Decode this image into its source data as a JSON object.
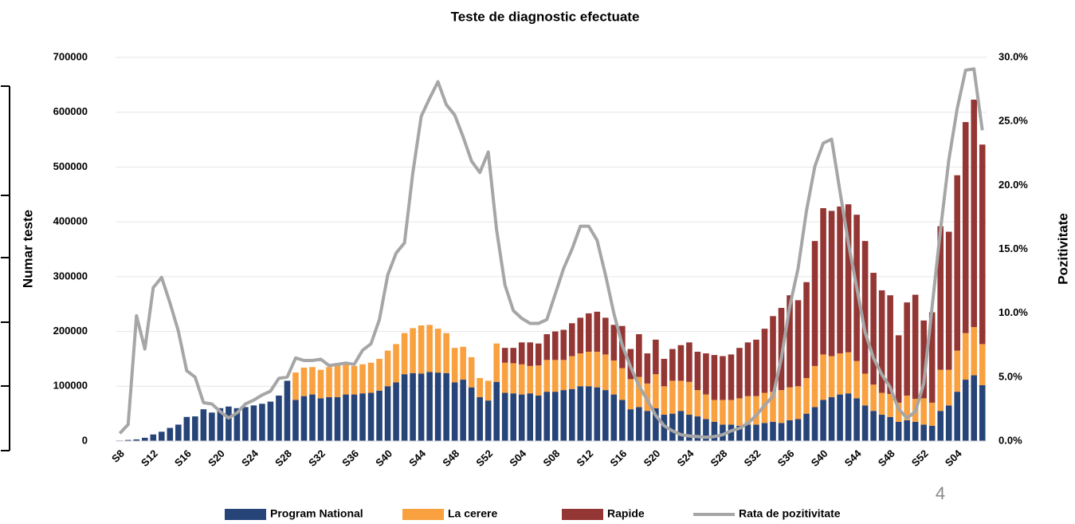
{
  "chart_data": {
    "type": "bar",
    "title": "Teste de diagnostic efectuate",
    "y_label": "Numar teste",
    "y2_label": "Pozitivitate",
    "annotation": "4",
    "stacked": true,
    "legend": "bottom",
    "categories": [
      "S8",
      null,
      null,
      null,
      "S12",
      null,
      null,
      null,
      "S16",
      null,
      null,
      null,
      "S20",
      null,
      null,
      null,
      "S24",
      null,
      null,
      null,
      "S28",
      null,
      null,
      null,
      "S32",
      null,
      null,
      null,
      "S36",
      null,
      null,
      null,
      "S40",
      null,
      null,
      null,
      "S44",
      null,
      null,
      null,
      "S48",
      null,
      null,
      null,
      "S52",
      null,
      null,
      null,
      "S04",
      null,
      null,
      null,
      "S08",
      null,
      null,
      null,
      "S12",
      null,
      null,
      null,
      "S16",
      null,
      null,
      null,
      "S20",
      null,
      null,
      null,
      "S24",
      null,
      null,
      null,
      "S28",
      null,
      null,
      null,
      "S32",
      null,
      null,
      null,
      "S36",
      null,
      null,
      null,
      "S40",
      null,
      null,
      null,
      "S44",
      null,
      null,
      null,
      "S48",
      null,
      null,
      null,
      "S52",
      null,
      null,
      null,
      "S04",
      null,
      null,
      null
    ],
    "series": [
      {
        "name": "Program National",
        "color": "#264478",
        "type": "bar",
        "values": [
          1000,
          2000,
          3000,
          6000,
          12000,
          17000,
          24000,
          30000,
          44000,
          45000,
          58000,
          52000,
          60000,
          63000,
          60000,
          62000,
          65000,
          68000,
          72000,
          83000,
          110000,
          75000,
          82000,
          85000,
          78000,
          80000,
          80000,
          85000,
          85000,
          87000,
          88000,
          92000,
          100000,
          107000,
          122000,
          124000,
          123000,
          126000,
          125000,
          124000,
          107000,
          112000,
          98000,
          80000,
          74000,
          108000,
          88000,
          87000,
          85000,
          87000,
          83000,
          90000,
          90000,
          93000,
          95000,
          100000,
          100000,
          98000,
          93000,
          85000,
          75000,
          58000,
          62000,
          55000,
          60000,
          48000,
          50000,
          55000,
          48000,
          45000,
          40000,
          35000,
          30000,
          30000,
          28000,
          30000,
          30000,
          33000,
          35000,
          33000,
          38000,
          40000,
          50000,
          62000,
          75000,
          80000,
          85000,
          87000,
          78000,
          65000,
          55000,
          48000,
          44000,
          35000,
          38000,
          35000,
          30000,
          28000,
          55000,
          65000,
          90000,
          112000,
          120000,
          102000
        ]
      },
      {
        "name": "La cerere",
        "color": "#f9a03f",
        "type": "bar",
        "values": [
          0,
          0,
          0,
          0,
          0,
          0,
          0,
          0,
          0,
          0,
          0,
          0,
          0,
          0,
          0,
          0,
          0,
          0,
          0,
          0,
          0,
          50000,
          52000,
          50000,
          52000,
          55000,
          62000,
          55000,
          52000,
          53000,
          55000,
          58000,
          65000,
          70000,
          75000,
          82000,
          88000,
          86000,
          80000,
          73000,
          63000,
          60000,
          55000,
          35000,
          36000,
          70000,
          55000,
          55000,
          55000,
          50000,
          55000,
          58000,
          58000,
          55000,
          60000,
          60000,
          63000,
          65000,
          65000,
          62000,
          58000,
          55000,
          55000,
          50000,
          62000,
          52000,
          60000,
          55000,
          60000,
          48000,
          45000,
          40000,
          45000,
          45000,
          50000,
          52000,
          52000,
          55000,
          55000,
          60000,
          60000,
          60000,
          65000,
          75000,
          83000,
          75000,
          75000,
          75000,
          68000,
          58000,
          48000,
          40000,
          42000,
          35000,
          45000,
          42000,
          48000,
          42000,
          75000,
          65000,
          75000,
          85000,
          88000,
          75000
        ]
      },
      {
        "name": "Rapide",
        "color": "#943634",
        "type": "bar",
        "values": [
          0,
          0,
          0,
          0,
          0,
          0,
          0,
          0,
          0,
          0,
          0,
          0,
          0,
          0,
          0,
          0,
          0,
          0,
          0,
          0,
          0,
          0,
          0,
          0,
          0,
          0,
          0,
          0,
          0,
          0,
          0,
          0,
          0,
          0,
          0,
          0,
          0,
          0,
          0,
          0,
          0,
          0,
          0,
          0,
          0,
          0,
          27000,
          28000,
          40000,
          43000,
          40000,
          47000,
          52000,
          55000,
          60000,
          65000,
          70000,
          73000,
          67000,
          65000,
          77000,
          55000,
          78000,
          55000,
          63000,
          50000,
          58000,
          65000,
          72000,
          70000,
          75000,
          82000,
          80000,
          83000,
          92000,
          98000,
          103000,
          117000,
          138000,
          150000,
          168000,
          157000,
          175000,
          228000,
          267000,
          265000,
          268000,
          270000,
          267000,
          242000,
          204000,
          187000,
          180000,
          123000,
          170000,
          190000,
          142000,
          165000,
          262000,
          252000,
          320000,
          385000,
          415000,
          364000
        ]
      },
      {
        "name": "Rata de pozitivitate",
        "color": "#a6a6a6",
        "type": "line",
        "axis": "y2",
        "values": [
          0.6,
          1.3,
          9.8,
          7.2,
          12.0,
          12.8,
          10.8,
          8.6,
          5.5,
          5.0,
          3.0,
          2.9,
          2.3,
          1.8,
          2.2,
          2.9,
          3.2,
          3.6,
          3.9,
          4.9,
          5.0,
          6.5,
          6.3,
          6.3,
          6.4,
          5.9,
          6.0,
          6.1,
          6.0,
          7.1,
          7.6,
          9.5,
          13.0,
          14.7,
          15.5,
          21.0,
          25.4,
          26.8,
          28.1,
          26.3,
          25.5,
          23.8,
          21.9,
          21.0,
          22.6,
          16.5,
          12.2,
          10.2,
          9.6,
          9.2,
          9.2,
          9.5,
          11.5,
          13.5,
          15.0,
          16.8,
          16.8,
          15.7,
          13.0,
          10.0,
          7.5,
          5.8,
          4.3,
          3.2,
          2.0,
          1.2,
          0.8,
          0.5,
          0.4,
          0.35,
          0.3,
          0.35,
          0.5,
          0.8,
          1.0,
          1.4,
          2.0,
          2.8,
          3.5,
          6.5,
          10.5,
          13.5,
          18.0,
          21.5,
          23.3,
          23.6,
          19.5,
          15.5,
          12.0,
          8.5,
          6.5,
          5.2,
          4.2,
          2.5,
          1.8,
          2.3,
          4.5,
          10.5,
          16.5,
          22.0,
          26.0,
          29.0,
          29.1,
          24.3
        ]
      }
    ],
    "ylim": [
      0,
      700000
    ],
    "yticks": [
      0,
      100000,
      200000,
      300000,
      400000,
      500000,
      600000,
      700000
    ],
    "y2lim": [
      0,
      30
    ],
    "y2ticks": [
      {
        "value": 0,
        "label": "0.0%"
      },
      {
        "value": 5,
        "label": "5.0%"
      },
      {
        "value": 10,
        "label": "10.0%"
      },
      {
        "value": 15,
        "label": "15.0%"
      },
      {
        "value": 20,
        "label": "20.0%"
      },
      {
        "value": 25,
        "label": "25.0%"
      },
      {
        "value": 30,
        "label": "30.0%"
      }
    ],
    "grid": true
  }
}
